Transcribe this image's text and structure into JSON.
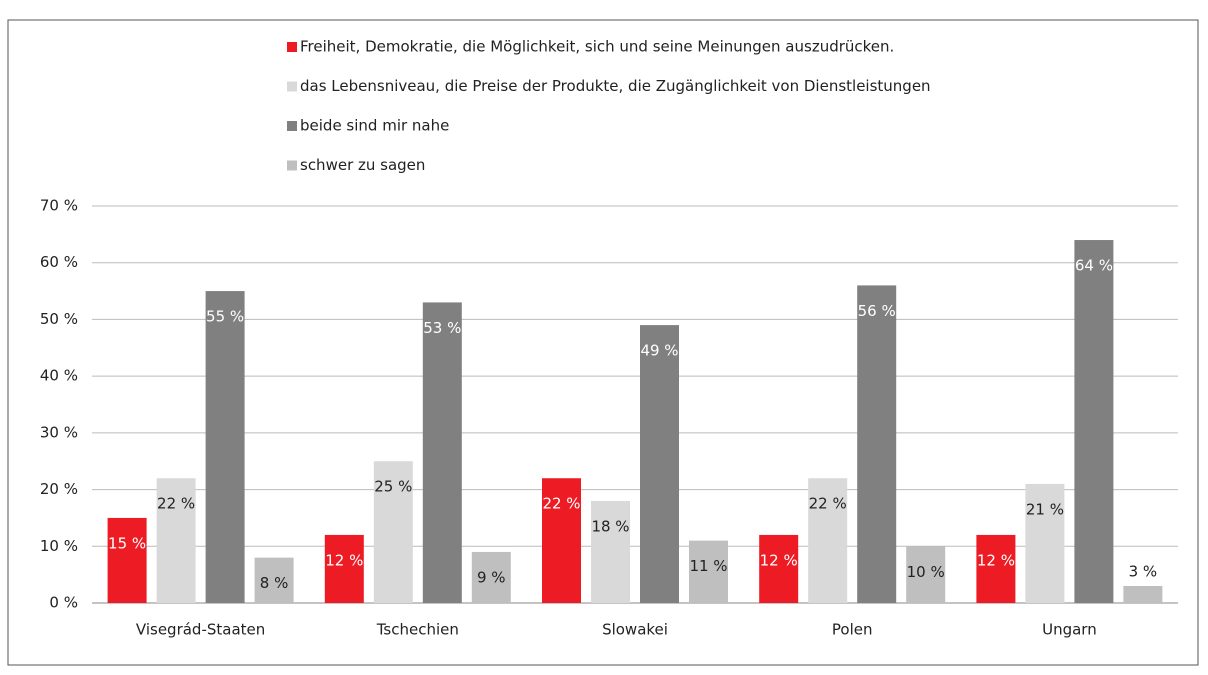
{
  "chart_data": {
    "type": "bar",
    "categories": [
      "Visegrád-Staaten",
      "Tschechien",
      "Slowakei",
      "Polen",
      "Ungarn"
    ],
    "series": [
      {
        "name": "Freiheit, Demokratie, die Möglichkeit, sich und seine Meinungen auszudrücken.",
        "color": "#ed1c24",
        "values": [
          15,
          12,
          22,
          12,
          12
        ],
        "value_labels": [
          "15 %",
          "12 %",
          "22 %",
          "12 %",
          "12 %"
        ]
      },
      {
        "name": "das Lebensniveau, die Preise der Produkte, die Zugänglichkeit von Dienstleistungen",
        "color": "#d9d9d9",
        "values": [
          22,
          25,
          18,
          22,
          21
        ],
        "value_labels": [
          "22 %",
          "25 %",
          "18 %",
          "22 %",
          "21 %"
        ]
      },
      {
        "name": "beide sind mir nahe",
        "color": "#808080",
        "values": [
          55,
          53,
          49,
          56,
          64
        ],
        "value_labels": [
          "55 %",
          "53 %",
          "49 %",
          "56 %",
          "64 %"
        ]
      },
      {
        "name": "schwer zu sagen",
        "color": "#bfbfbf",
        "values": [
          8,
          9,
          11,
          10,
          3
        ],
        "value_labels": [
          "8 %",
          "9 %",
          "11 %",
          "10 %",
          "3 %"
        ]
      }
    ],
    "ylim": [
      0,
      70
    ],
    "yticks": [
      {
        "value": 0,
        "label": "0 %"
      },
      {
        "value": 10,
        "label": "10 %"
      },
      {
        "value": 20,
        "label": "20 %"
      },
      {
        "value": 30,
        "label": "30 %"
      },
      {
        "value": 40,
        "label": "40 %"
      },
      {
        "value": 50,
        "label": "50 %"
      },
      {
        "value": 60,
        "label": "60 %"
      },
      {
        "value": 70,
        "label": "70 %"
      }
    ],
    "grid": true
  }
}
